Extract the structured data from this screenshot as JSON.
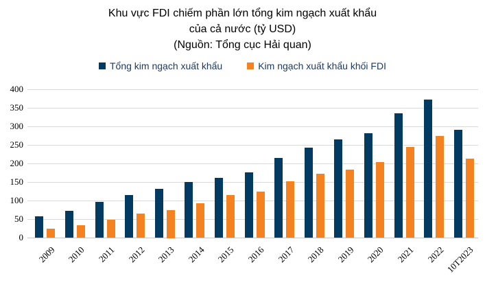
{
  "title": {
    "line1": "Khu vực FDI chiếm phần lớn tổng kim ngạch xuất khẩu",
    "line2": "của cả nước (tỷ USD)",
    "line3": "(Nguồn: Tổng cục Hải quan)"
  },
  "legend": {
    "items": [
      {
        "label": "Tổng kim ngạch xuất khẩu",
        "color": "#033A61"
      },
      {
        "label": "Kim ngạch xuất khẩu khối FDI",
        "color": "#F58220"
      }
    ]
  },
  "chart_data": {
    "type": "bar",
    "title": "Khu vực FDI chiếm phần lớn tổng kim ngạch xuất khẩu của cả nước (tỷ USD) (Nguồn: Tổng cục Hải quan)",
    "categories": [
      "2009",
      "2010",
      "2011",
      "2012",
      "2013",
      "2014",
      "2015",
      "2016",
      "2017",
      "2018",
      "2019",
      "2020",
      "2021",
      "2022",
      "10T2023"
    ],
    "series": [
      {
        "name": "Tổng kim ngạch xuất khẩu",
        "color": "#033A61",
        "values": [
          57,
          72,
          96,
          115,
          132,
          150,
          162,
          176,
          215,
          243,
          264,
          282,
          336,
          372,
          291
        ]
      },
      {
        "name": "Kim ngạch xuất khẩu khối FDI",
        "color": "#F58220",
        "values": [
          24,
          34,
          48,
          64,
          75,
          93,
          115,
          124,
          152,
          172,
          183,
          204,
          245,
          274,
          213
        ]
      }
    ],
    "xlabel": "",
    "ylabel": "",
    "ylim": [
      0,
      400
    ],
    "ytick_step": 50,
    "ytick_labels": [
      "0",
      "50",
      "100",
      "150",
      "200",
      "250",
      "300",
      "350",
      "400"
    ],
    "grid": "horizontal",
    "legend_position": "top",
    "colors": {
      "grid": "#D9D9D9",
      "axis_line": "#C6C6C6",
      "tick_text": "#000000",
      "legend_text": "#1F3864",
      "title_text": "#000000",
      "background": "#FFFFFF"
    }
  }
}
